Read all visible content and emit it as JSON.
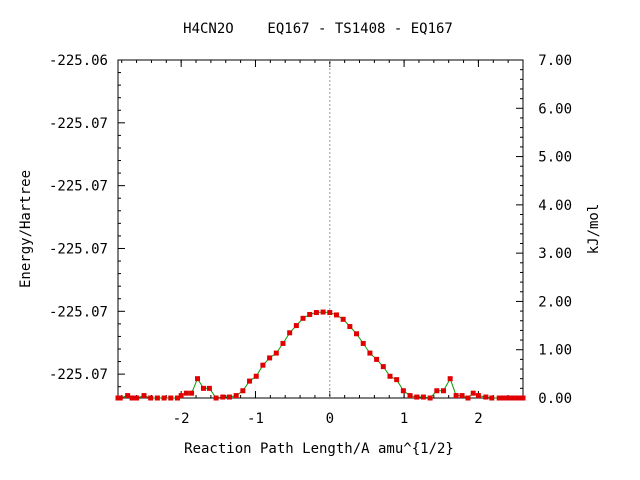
{
  "chart_data": {
    "type": "line",
    "title": "H4CN2O    EQ167 - TS1408 - EQ167",
    "xlabel": "Reaction Path Length/A amu^{1/2}",
    "ylabel": "Energy/Hartree",
    "y2label": "kJ/mol",
    "xlim": [
      -2.85,
      2.6
    ],
    "x_ticks": [
      -2,
      -1,
      0,
      1,
      2
    ],
    "x_tick_labels": [
      "-2",
      "-1",
      "0",
      "1",
      "2"
    ],
    "ylim_kjmol": [
      0,
      7
    ],
    "y_tick_labels": [
      "-225.06",
      "-225.07",
      "-225.07",
      "-225.07",
      "-225.07",
      "-225.07"
    ],
    "y2_tick_labels": [
      "7.00",
      "6.00",
      "5.00",
      "4.00",
      "3.00",
      "2.00",
      "1.00",
      "0.00"
    ],
    "grid": false,
    "ts_marker_x": 0,
    "colors": {
      "line": "#00a000",
      "marker": "#e00000",
      "ts_line": "#a0a0a0"
    },
    "series": [
      {
        "x": [
          -2.85,
          -2.82,
          -2.72,
          -2.66,
          -2.6,
          -2.5,
          -2.41,
          -2.32,
          -2.23,
          -2.14,
          -2.05,
          -2.0,
          -1.93,
          -1.86,
          -1.78,
          -1.7,
          -1.62,
          -1.53,
          -1.44,
          -1.35,
          -1.26,
          -1.17,
          -1.08,
          -0.99,
          -0.9,
          -0.81,
          -0.72,
          -0.63,
          -0.54,
          -0.45,
          -0.36,
          -0.27,
          -0.18,
          -0.09,
          0.0,
          0.09,
          0.18,
          0.27,
          0.36,
          0.45,
          0.54,
          0.63,
          0.72,
          0.81,
          0.9,
          0.99,
          1.08,
          1.17,
          1.26,
          1.35,
          1.44,
          1.53,
          1.62,
          1.7,
          1.78,
          1.86,
          1.93,
          2.0,
          2.1,
          2.18,
          2.28,
          2.34,
          2.4,
          2.46,
          2.52,
          2.57,
          2.6
        ],
        "y_kjmol": [
          0.0,
          0.0,
          0.05,
          0.0,
          0.0,
          0.05,
          0.0,
          0.0,
          0.0,
          0.0,
          0.0,
          0.05,
          0.1,
          0.1,
          0.4,
          0.2,
          0.2,
          0.0,
          0.02,
          0.02,
          0.05,
          0.15,
          0.35,
          0.45,
          0.68,
          0.83,
          0.93,
          1.13,
          1.35,
          1.5,
          1.65,
          1.73,
          1.77,
          1.78,
          1.77,
          1.72,
          1.63,
          1.48,
          1.33,
          1.13,
          0.93,
          0.8,
          0.65,
          0.45,
          0.38,
          0.15,
          0.05,
          0.02,
          0.02,
          0.0,
          0.15,
          0.15,
          0.4,
          0.05,
          0.05,
          0.0,
          0.1,
          0.05,
          0.02,
          0.0,
          0.0,
          0.0,
          0.0,
          0.0,
          0.0,
          0.0,
          0.0
        ]
      }
    ]
  }
}
